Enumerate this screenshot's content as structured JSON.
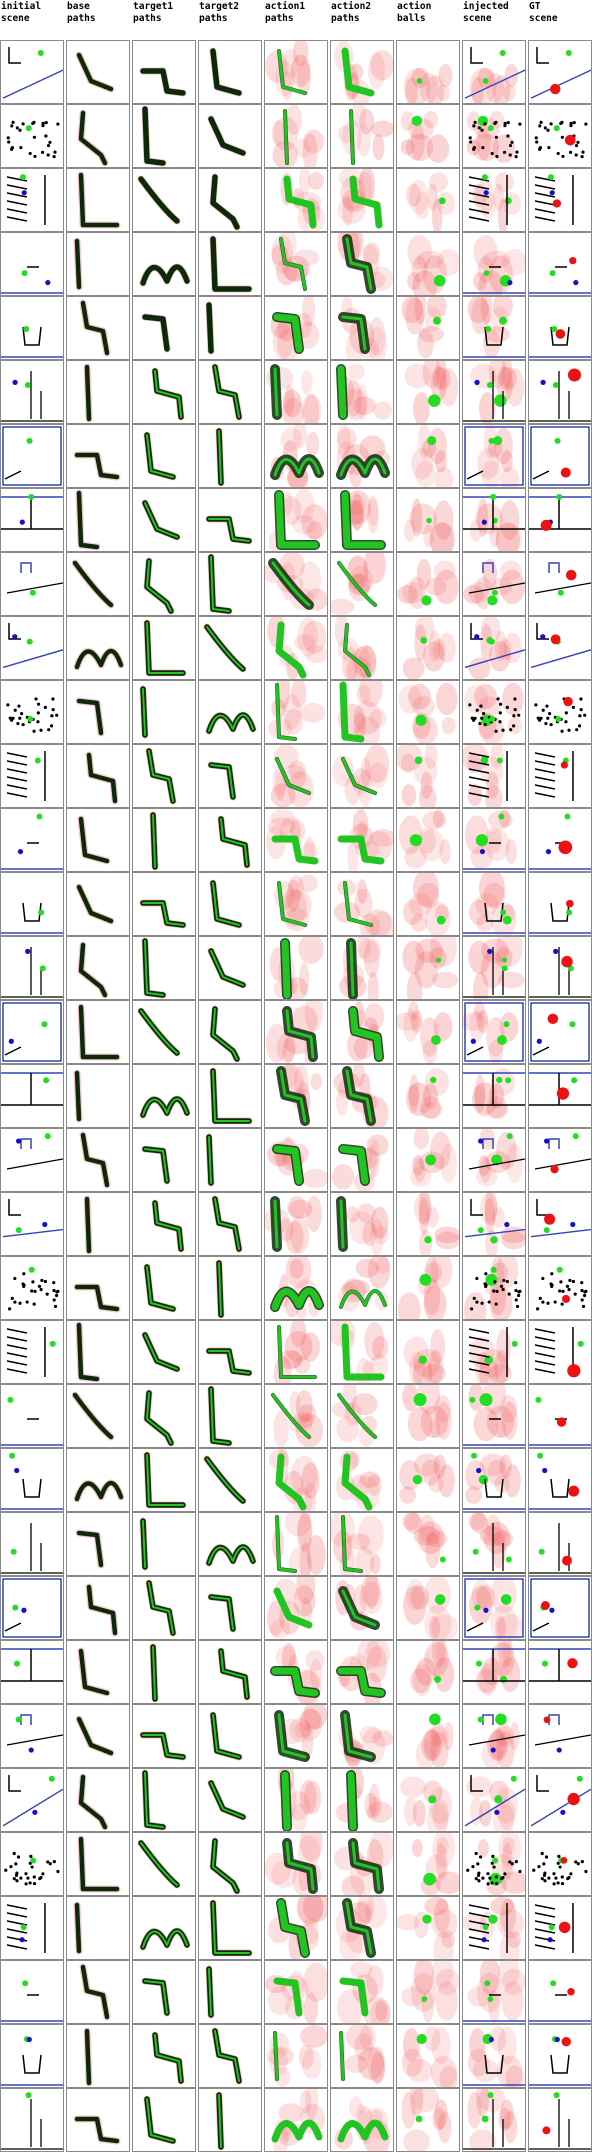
{
  "columns": [
    {
      "id": "initial_scene",
      "l1": "initial",
      "l2": "scene"
    },
    {
      "id": "base_paths",
      "l1": "base",
      "l2": "paths"
    },
    {
      "id": "target1_paths",
      "l1": "target1",
      "l2": "paths"
    },
    {
      "id": "target2_paths",
      "l1": "target2",
      "l2": "paths"
    },
    {
      "id": "action1_paths",
      "l1": "action1",
      "l2": "paths"
    },
    {
      "id": "action2_paths",
      "l1": "action2",
      "l2": "paths"
    },
    {
      "id": "action_balls",
      "l1": "action",
      "l2": "balls"
    },
    {
      "id": "injected_scene",
      "l1": "injected",
      "l2": "scene"
    },
    {
      "id": "gt_scene",
      "l1": "GT",
      "l2": "scene"
    }
  ],
  "row_count": 33,
  "colors": {
    "path_dark": "#0a2a0a",
    "path_green": "#22c422",
    "heat_red": "#f05a5a",
    "ball_green": "#22dd22",
    "ball_red": "#ee1111",
    "ball_blue": "#1111cc",
    "wall_blue": "#3344bb",
    "scene_black": "#000000",
    "cell_border": "#8a8a8a"
  }
}
